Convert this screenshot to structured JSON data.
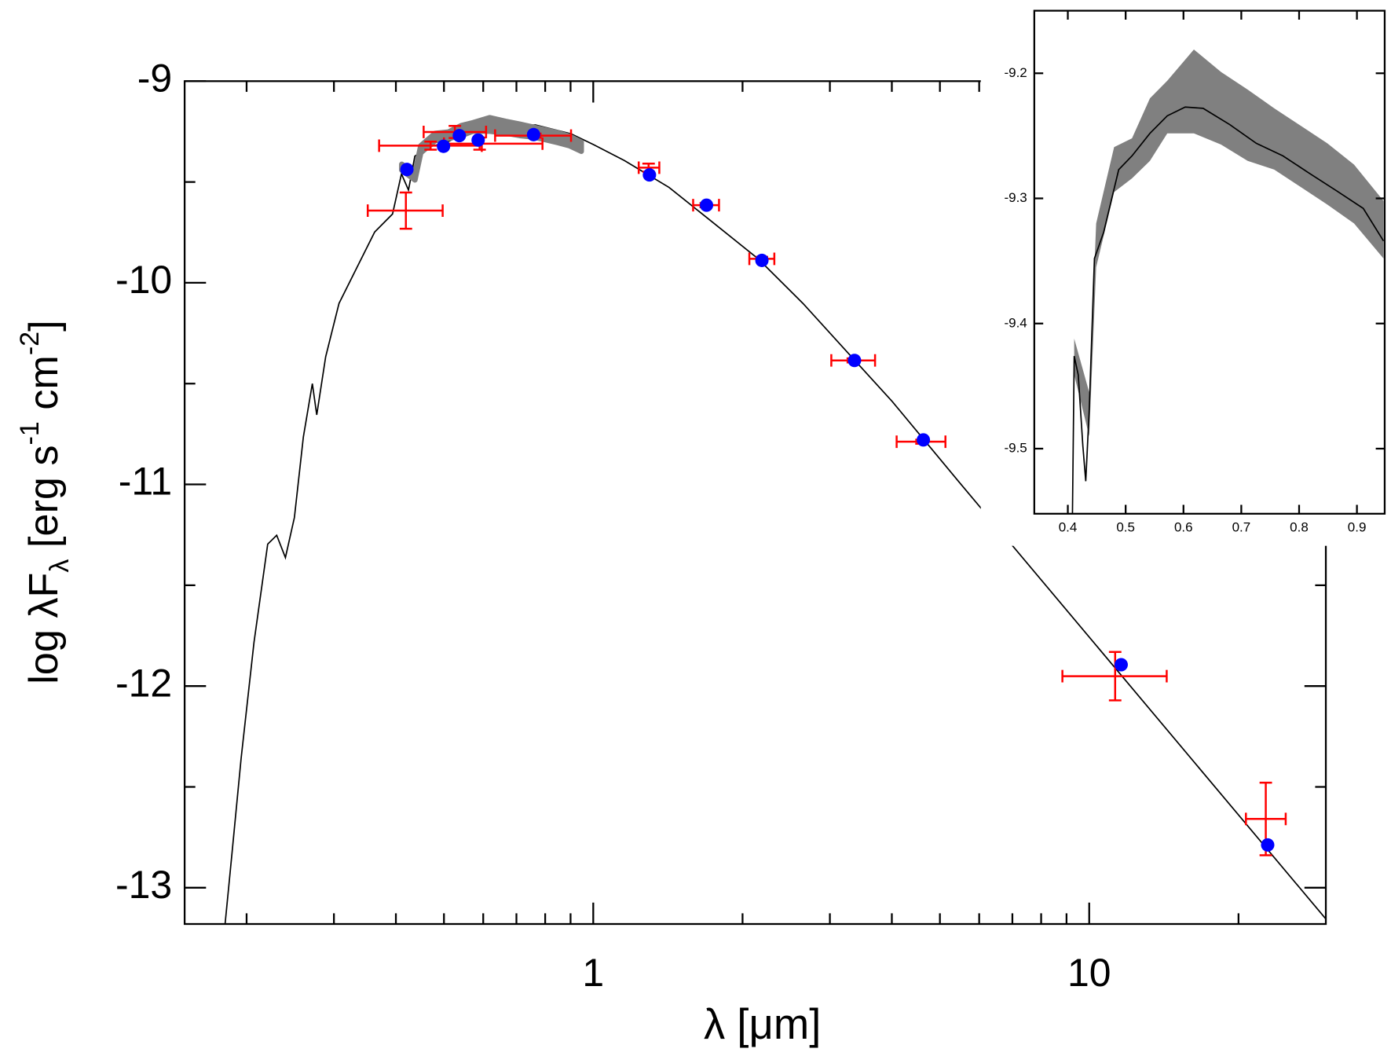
{
  "chart_data": [
    {
      "type": "line",
      "xlabel": "λ [μm]",
      "ylabel_parts": [
        "log λF",
        "λ",
        " [erg s",
        "-1",
        " cm",
        "-2",
        "]"
      ],
      "xlog": true,
      "xlim": [
        0.15,
        30
      ],
      "ylim": [
        -13.18,
        -9
      ],
      "xticks": [
        1,
        10
      ],
      "xminorticks": [
        0.2,
        0.3,
        0.4,
        0.5,
        0.6,
        0.7,
        0.8,
        0.9,
        2,
        3,
        4,
        5,
        6,
        7,
        8,
        9,
        20
      ],
      "yticks": [
        -9,
        -10,
        -11,
        -12,
        -13
      ],
      "yminorticks": [
        -9.5,
        -10.5,
        -11.5,
        -12.5
      ],
      "spectrum": {
        "color": "#000000",
        "x": [
          0.181,
          0.187,
          0.195,
          0.207,
          0.2206,
          0.23,
          0.2395,
          0.2497,
          0.2603,
          0.2714,
          0.277,
          0.2887,
          0.3072,
          0.3337,
          0.3625,
          0.3938,
          0.4105,
          0.4241,
          0.4368,
          0.4647,
          0.5048,
          0.5485,
          0.647,
          0.764,
          0.902,
          1.0,
          1.156,
          1.422,
          1.749,
          2.15,
          2.647,
          3.255,
          4.005,
          5.46,
          30
        ],
        "values": [
          -13.18,
          -12.823,
          -12.358,
          -11.783,
          -11.296,
          -11.252,
          -11.363,
          -11.164,
          -10.765,
          -10.5,
          -10.655,
          -10.367,
          -10.102,
          -9.925,
          -9.748,
          -9.659,
          -9.46,
          -9.54,
          -9.372,
          -9.327,
          -9.305,
          -9.261,
          -9.226,
          -9.217,
          -9.261,
          -9.314,
          -9.394,
          -9.527,
          -9.704,
          -9.881,
          -10.102,
          -10.345,
          -10.588,
          -10.987,
          -13.155
        ]
      },
      "photometry": {
        "color": "#ff0000",
        "x": [
          0.419,
          0.47,
          0.526,
          0.59,
          0.764,
          1.293,
          1.686,
          2.188,
          3.337,
          4.59,
          11.28,
          22.7
        ],
        "x_low": [
          0.351,
          0.37,
          0.455,
          0.5,
          0.634,
          1.235,
          1.59,
          2.064,
          3.02,
          4.09,
          8.83,
          20.7
        ],
        "x_high": [
          0.497,
          0.596,
          0.608,
          0.79,
          0.902,
          1.359,
          1.793,
          2.318,
          3.7,
          5.13,
          14.33,
          24.9
        ],
        "values": [
          -9.642,
          -9.32,
          -9.252,
          -9.31,
          -9.27,
          -9.429,
          -9.615,
          -9.881,
          -10.385,
          -10.788,
          -11.951,
          -12.659
        ],
        "yerr": [
          0.09,
          0.02,
          0.03,
          0.03,
          0.01,
          0.02,
          0.01,
          0.01,
          0.01,
          0.01,
          0.12,
          0.18
        ]
      },
      "model_points": {
        "color": "#0000ff",
        "x": [
          0.421,
          0.499,
          0.537,
          0.586,
          0.758,
          1.298,
          1.692,
          2.188,
          3.363,
          4.63,
          11.6,
          22.9
        ],
        "values": [
          -9.438,
          -9.323,
          -9.27,
          -9.292,
          -9.265,
          -9.465,
          -9.615,
          -9.889,
          -10.385,
          -10.779,
          -11.894,
          -12.788
        ]
      }
    },
    {
      "type": "line",
      "xlim": [
        0.342,
        0.948
      ],
      "ylim": [
        -9.552,
        -9.15
      ],
      "xticks": [
        0.4,
        0.5,
        0.6,
        0.7,
        0.8,
        0.9
      ],
      "yticks": [
        -9.2,
        -9.3,
        -9.4,
        -9.5
      ],
      "band": {
        "color": "#808080",
        "x": [
          0.411,
          0.437,
          0.449,
          0.48,
          0.511,
          0.542,
          0.572,
          0.618,
          0.665,
          0.711,
          0.757,
          0.803,
          0.849,
          0.895,
          0.946
        ],
        "low": [
          -9.441,
          -9.49,
          -9.355,
          -9.295,
          -9.284,
          -9.27,
          -9.248,
          -9.248,
          -9.257,
          -9.27,
          -9.277,
          -9.291,
          -9.305,
          -9.32,
          -9.348
        ],
        "high": [
          -9.412,
          -9.455,
          -9.32,
          -9.259,
          -9.252,
          -9.22,
          -9.206,
          -9.181,
          -9.199,
          -9.213,
          -9.228,
          -9.242,
          -9.256,
          -9.273,
          -9.302
        ]
      },
      "spectrum": {
        "color": "#000000",
        "x": [
          0.408,
          0.411,
          0.418,
          0.426,
          0.431,
          0.437,
          0.446,
          0.462,
          0.488,
          0.511,
          0.542,
          0.572,
          0.603,
          0.634,
          0.68,
          0.726,
          0.772,
          0.818,
          0.865,
          0.911,
          0.946
        ],
        "values": [
          -9.552,
          -9.426,
          -9.441,
          -9.498,
          -9.526,
          -9.469,
          -9.348,
          -9.327,
          -9.277,
          -9.266,
          -9.248,
          -9.234,
          -9.227,
          -9.228,
          -9.241,
          -9.256,
          -9.266,
          -9.28,
          -9.294,
          -9.308,
          -9.334
        ]
      }
    }
  ]
}
